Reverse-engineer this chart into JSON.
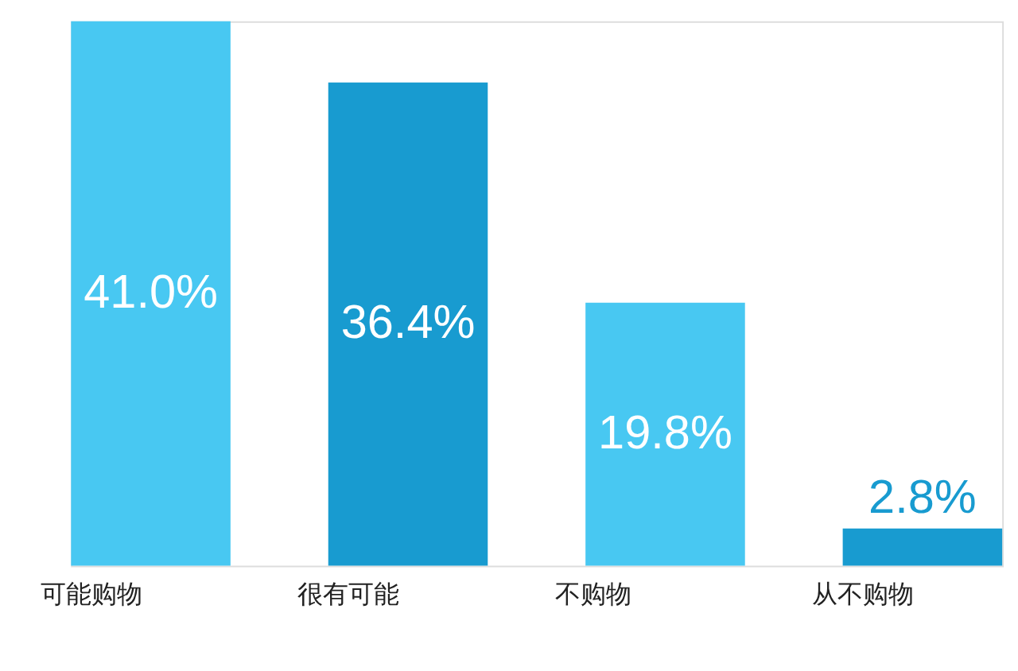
{
  "chart_data": {
    "type": "bar",
    "categories": [
      "可能购物",
      "很有可能",
      "不购物",
      "从不购物"
    ],
    "values": [
      41.0,
      36.4,
      19.8,
      2.8
    ],
    "colors": [
      "#48c8f2",
      "#189bd0",
      "#48c8f2",
      "#189bd0"
    ],
    "value_labels": [
      "41.0%",
      "36.4%",
      "19.8%",
      "2.8%"
    ]
  }
}
